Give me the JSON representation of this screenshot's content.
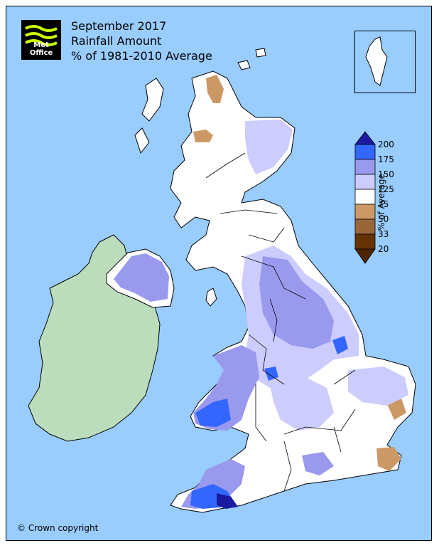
{
  "title": {
    "line1": "September 2017",
    "line2": "Rainfall Amount",
    "line3": "% of 1981-2010 Average"
  },
  "logo": {
    "text": "Met Office",
    "icon": "met-office-logo-icon"
  },
  "copyright": "© Crown copyright",
  "legend": {
    "title": "% of Average",
    "labels": [
      "200",
      "175",
      "150",
      "125",
      "75",
      "50",
      "33",
      "20"
    ],
    "colors": [
      "#1a1aa0",
      "#3366ff",
      "#9999ee",
      "#ccccff",
      "#ffffff",
      "#cc9966",
      "#99663a",
      "#663300",
      "#4d2600"
    ]
  },
  "colors": {
    "sea": "#99ccff",
    "ireland": "#bbddbb",
    "normal": "#ffffff",
    "wet_light": "#ccccff",
    "wet_mid": "#9999ee",
    "wet_high": "#3366ff",
    "wet_extreme": "#1a1aa0",
    "dry": "#cc9966"
  }
}
